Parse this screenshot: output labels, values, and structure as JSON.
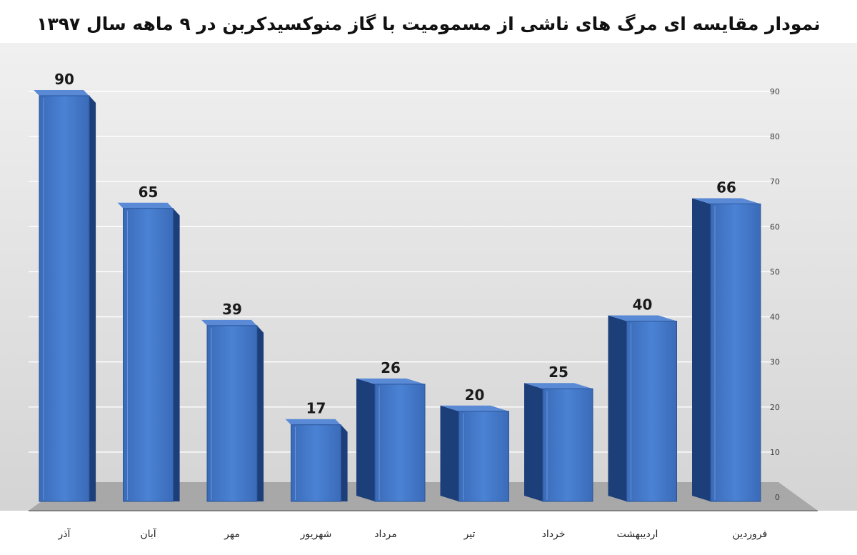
{
  "chart_data": {
    "type": "bar",
    "title": "نمودار مقایسه ای مرگ های ناشی از مسمومیت با گاز منوکسیدکربن در ۹ ماهه سال ۱۳۹۷",
    "categories": [
      "فروردین",
      "اردیبهشت",
      "خرداد",
      "تیر",
      "مرداد",
      "شهریور",
      "مهر",
      "آبان",
      "آذر"
    ],
    "values": [
      66,
      40,
      25,
      20,
      26,
      17,
      39,
      65,
      90
    ],
    "ylim": [
      0,
      90
    ],
    "yticks": [
      "0",
      "10",
      "20",
      "30",
      "40",
      "50",
      "60",
      "70",
      "80",
      "90"
    ],
    "xlabel": "",
    "ylabel": "",
    "grid": true,
    "axis_side": "right",
    "category_order": "right-to-left",
    "bar_style": "3d",
    "colors": {
      "bar_front": "#3f74c4",
      "bar_side": "#1c3f7a",
      "bar_top": "#5a8ad6",
      "grid": "#ffffff",
      "background": "#dcdcdc",
      "floor": "#a8a8a8"
    }
  }
}
